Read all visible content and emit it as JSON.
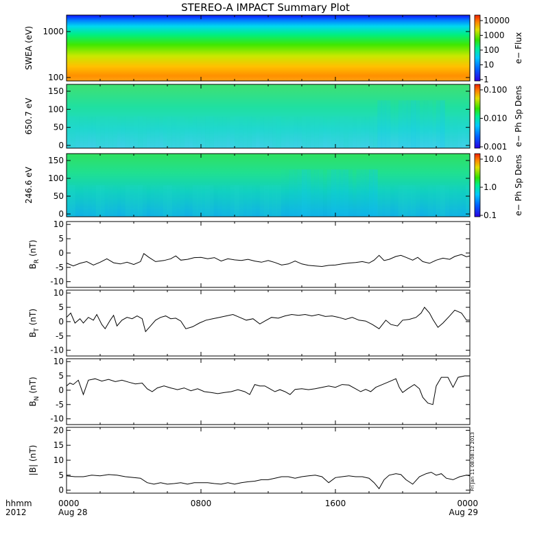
{
  "chart_data": {
    "type": "multi-panel",
    "title": "STEREO-A IMPACT Summary Plot",
    "stamp": "Fri Jan 11 08:08:12 2013",
    "x_axis": {
      "corner_label_1": "hhmm",
      "corner_label_2": "2012",
      "range_hours": [
        0,
        24
      ],
      "ticks": [
        {
          "hour": 0,
          "label": "0000",
          "date": "Aug 28"
        },
        {
          "hour": 8,
          "label": "0800",
          "date": ""
        },
        {
          "hour": 16,
          "label": "1600",
          "date": ""
        },
        {
          "hour": 24,
          "label": "0000",
          "date": "Aug 29"
        }
      ]
    },
    "spectrograms": [
      {
        "id": "swea",
        "ylabel": "SWEA (eV)",
        "y_ticks": [
          "1000",
          "100"
        ],
        "colorbar_label": "e− Flux",
        "colorbar_ticks": [
          "10000",
          "1000",
          "100",
          "10",
          "1"
        ],
        "colorbar_scale": "log"
      },
      {
        "id": "pad650",
        "ylabel": "650.7 eV",
        "y_ticks": [
          "150",
          "100",
          "50",
          "0"
        ],
        "colorbar_label": "e− Ph Sp Dens",
        "colorbar_ticks": [
          "0.100",
          "0.010",
          "0.001"
        ],
        "colorbar_scale": "log"
      },
      {
        "id": "pad246",
        "ylabel": "246.6 eV",
        "y_ticks": [
          "150",
          "100",
          "50",
          "0"
        ],
        "colorbar_label": "e− Ph Sp Dens",
        "colorbar_ticks": [
          "10.0",
          "1.0",
          "0.1"
        ],
        "colorbar_scale": "log"
      }
    ],
    "line_panels": [
      {
        "id": "br",
        "ylabel_main": "B",
        "ylabel_sub": "R",
        "ylabel_unit": "(nT)",
        "ylim": [
          -12,
          11
        ],
        "y_ticks": [
          10,
          5,
          0,
          -5,
          -10
        ],
        "series": [
          [
            0,
            -3.5
          ],
          [
            0.4,
            -4.5
          ],
          [
            0.8,
            -3.6
          ],
          [
            1.2,
            -3
          ],
          [
            1.6,
            -4.2
          ],
          [
            2.0,
            -3.2
          ],
          [
            2.4,
            -2.0
          ],
          [
            2.8,
            -3.4
          ],
          [
            3.2,
            -3.8
          ],
          [
            3.6,
            -3.2
          ],
          [
            4.0,
            -4.0
          ],
          [
            4.4,
            -3.0
          ],
          [
            4.6,
            -0.2
          ],
          [
            4.9,
            -1.5
          ],
          [
            5.3,
            -3.0
          ],
          [
            5.8,
            -2.6
          ],
          [
            6.2,
            -2.0
          ],
          [
            6.5,
            -1.0
          ],
          [
            6.8,
            -2.5
          ],
          [
            7.2,
            -2.2
          ],
          [
            7.6,
            -1.6
          ],
          [
            8.0,
            -1.5
          ],
          [
            8.4,
            -2.0
          ],
          [
            8.8,
            -1.6
          ],
          [
            9.2,
            -2.8
          ],
          [
            9.6,
            -2.0
          ],
          [
            10.0,
            -2.4
          ],
          [
            10.4,
            -2.6
          ],
          [
            10.8,
            -2.2
          ],
          [
            11.2,
            -2.8
          ],
          [
            11.6,
            -3.2
          ],
          [
            12.0,
            -2.6
          ],
          [
            12.4,
            -3.3
          ],
          [
            12.8,
            -4.2
          ],
          [
            13.2,
            -3.8
          ],
          [
            13.6,
            -2.8
          ],
          [
            14.0,
            -3.8
          ],
          [
            14.4,
            -4.3
          ],
          [
            14.8,
            -4.5
          ],
          [
            15.2,
            -4.7
          ],
          [
            15.6,
            -4.3
          ],
          [
            16.0,
            -4.2
          ],
          [
            16.4,
            -3.8
          ],
          [
            16.8,
            -3.5
          ],
          [
            17.2,
            -3.3
          ],
          [
            17.6,
            -3.0
          ],
          [
            18.0,
            -3.5
          ],
          [
            18.3,
            -2.5
          ],
          [
            18.6,
            -0.8
          ],
          [
            18.9,
            -2.6
          ],
          [
            19.2,
            -2.2
          ],
          [
            19.6,
            -1.2
          ],
          [
            19.9,
            -0.8
          ],
          [
            20.2,
            -1.5
          ],
          [
            20.6,
            -2.5
          ],
          [
            20.9,
            -1.5
          ],
          [
            21.2,
            -3.0
          ],
          [
            21.6,
            -3.6
          ],
          [
            22.0,
            -2.5
          ],
          [
            22.4,
            -1.8
          ],
          [
            22.8,
            -2.2
          ],
          [
            23.1,
            -1.2
          ],
          [
            23.5,
            -0.5
          ],
          [
            23.8,
            -1.3
          ],
          [
            24,
            -1.0
          ]
        ]
      },
      {
        "id": "bt",
        "ylabel_main": "B",
        "ylabel_sub": "T",
        "ylabel_unit": "(nT)",
        "ylim": [
          -12,
          11
        ],
        "y_ticks": [
          10,
          5,
          0,
          -5,
          -10
        ],
        "series": [
          [
            0,
            1.5
          ],
          [
            0.25,
            3.0
          ],
          [
            0.5,
            -0.5
          ],
          [
            0.8,
            1.0
          ],
          [
            1.0,
            -0.5
          ],
          [
            1.3,
            1.5
          ],
          [
            1.6,
            0.5
          ],
          [
            1.8,
            2.5
          ],
          [
            2.1,
            -1.0
          ],
          [
            2.3,
            -2.5
          ],
          [
            2.6,
            0.5
          ],
          [
            2.8,
            2.2
          ],
          [
            3.0,
            -1.5
          ],
          [
            3.3,
            0.5
          ],
          [
            3.6,
            1.5
          ],
          [
            3.9,
            1.0
          ],
          [
            4.2,
            2.0
          ],
          [
            4.5,
            1.0
          ],
          [
            4.7,
            -3.5
          ],
          [
            5.0,
            -1.5
          ],
          [
            5.3,
            0.5
          ],
          [
            5.6,
            1.5
          ],
          [
            5.9,
            2.0
          ],
          [
            6.2,
            1.0
          ],
          [
            6.5,
            1.2
          ],
          [
            6.8,
            0.2
          ],
          [
            7.1,
            -2.5
          ],
          [
            7.5,
            -1.8
          ],
          [
            7.9,
            -0.5
          ],
          [
            8.3,
            0.5
          ],
          [
            8.7,
            1.0
          ],
          [
            9.1,
            1.5
          ],
          [
            9.5,
            2.0
          ],
          [
            9.9,
            2.5
          ],
          [
            10.3,
            1.5
          ],
          [
            10.7,
            0.5
          ],
          [
            11.1,
            1.0
          ],
          [
            11.5,
            -0.8
          ],
          [
            11.8,
            0.2
          ],
          [
            12.2,
            1.5
          ],
          [
            12.6,
            1.2
          ],
          [
            13.0,
            2.0
          ],
          [
            13.4,
            2.5
          ],
          [
            13.8,
            2.2
          ],
          [
            14.2,
            2.5
          ],
          [
            14.6,
            2.0
          ],
          [
            15.0,
            2.5
          ],
          [
            15.4,
            1.8
          ],
          [
            15.8,
            2.0
          ],
          [
            16.2,
            1.5
          ],
          [
            16.6,
            0.8
          ],
          [
            17.0,
            1.5
          ],
          [
            17.4,
            0.5
          ],
          [
            17.8,
            0.2
          ],
          [
            18.2,
            -1.0
          ],
          [
            18.6,
            -2.5
          ],
          [
            19.0,
            0.5
          ],
          [
            19.3,
            -1.0
          ],
          [
            19.7,
            -1.5
          ],
          [
            20.0,
            0.5
          ],
          [
            20.4,
            0.8
          ],
          [
            20.8,
            1.5
          ],
          [
            21.1,
            3.0
          ],
          [
            21.3,
            5.0
          ],
          [
            21.6,
            3.0
          ],
          [
            21.8,
            0.8
          ],
          [
            22.1,
            -2.0
          ],
          [
            22.4,
            -0.5
          ],
          [
            22.8,
            2.0
          ],
          [
            23.1,
            4.0
          ],
          [
            23.5,
            3.0
          ],
          [
            23.8,
            0.5
          ],
          [
            24,
            0.5
          ]
        ]
      },
      {
        "id": "bn",
        "ylabel_main": "B",
        "ylabel_sub": "N",
        "ylabel_unit": "(nT)",
        "ylim": [
          -12,
          11
        ],
        "y_ticks": [
          10,
          5,
          0,
          -5,
          -10
        ],
        "series": [
          [
            0,
            1.5
          ],
          [
            0.2,
            2.5
          ],
          [
            0.4,
            2.0
          ],
          [
            0.7,
            3.5
          ],
          [
            1.0,
            -1.5
          ],
          [
            1.3,
            3.5
          ],
          [
            1.7,
            4.0
          ],
          [
            2.1,
            3.2
          ],
          [
            2.5,
            3.8
          ],
          [
            2.9,
            3.0
          ],
          [
            3.3,
            3.5
          ],
          [
            3.7,
            2.8
          ],
          [
            4.1,
            2.2
          ],
          [
            4.5,
            2.5
          ],
          [
            4.8,
            0.5
          ],
          [
            5.1,
            -0.5
          ],
          [
            5.4,
            0.8
          ],
          [
            5.8,
            1.5
          ],
          [
            6.2,
            0.8
          ],
          [
            6.6,
            0.2
          ],
          [
            7.0,
            0.8
          ],
          [
            7.4,
            -0.2
          ],
          [
            7.8,
            0.5
          ],
          [
            8.2,
            -0.5
          ],
          [
            8.6,
            -0.8
          ],
          [
            9.0,
            -1.2
          ],
          [
            9.4,
            -0.8
          ],
          [
            9.8,
            -0.5
          ],
          [
            10.2,
            0.2
          ],
          [
            10.6,
            -0.5
          ],
          [
            10.9,
            -1.5
          ],
          [
            11.2,
            2.0
          ],
          [
            11.5,
            1.5
          ],
          [
            11.8,
            1.5
          ],
          [
            12.1,
            0.5
          ],
          [
            12.4,
            -0.5
          ],
          [
            12.7,
            0.2
          ],
          [
            13.0,
            -0.5
          ],
          [
            13.3,
            -1.5
          ],
          [
            13.6,
            0.3
          ],
          [
            14.0,
            0.5
          ],
          [
            14.4,
            0.2
          ],
          [
            14.8,
            0.5
          ],
          [
            15.2,
            1.0
          ],
          [
            15.6,
            1.5
          ],
          [
            16.0,
            1.0
          ],
          [
            16.4,
            2.0
          ],
          [
            16.8,
            1.8
          ],
          [
            17.2,
            0.5
          ],
          [
            17.5,
            -0.5
          ],
          [
            17.8,
            0.3
          ],
          [
            18.1,
            -0.5
          ],
          [
            18.4,
            1.0
          ],
          [
            18.8,
            2.0
          ],
          [
            19.2,
            3.0
          ],
          [
            19.6,
            4.0
          ],
          [
            19.8,
            1.0
          ],
          [
            20.0,
            -0.8
          ],
          [
            20.3,
            0.5
          ],
          [
            20.7,
            2.0
          ],
          [
            21.0,
            0.5
          ],
          [
            21.2,
            -2.5
          ],
          [
            21.5,
            -4.5
          ],
          [
            21.8,
            -5.0
          ],
          [
            22.0,
            1.5
          ],
          [
            22.3,
            4.5
          ],
          [
            22.7,
            4.5
          ],
          [
            23.0,
            1.0
          ],
          [
            23.3,
            4.5
          ],
          [
            23.7,
            5.0
          ],
          [
            24,
            5.0
          ]
        ]
      },
      {
        "id": "bmag",
        "ylabel_main": "|B|",
        "ylabel_sub": "",
        "ylabel_unit": "(nT)",
        "ylim": [
          -1,
          21
        ],
        "y_ticks": [
          20,
          15,
          10,
          5,
          0
        ],
        "series": [
          [
            0,
            4.8
          ],
          [
            0.5,
            4.5
          ],
          [
            1.0,
            4.5
          ],
          [
            1.5,
            5.0
          ],
          [
            2.0,
            4.8
          ],
          [
            2.5,
            5.2
          ],
          [
            3.0,
            5.0
          ],
          [
            3.5,
            4.5
          ],
          [
            4.0,
            4.2
          ],
          [
            4.4,
            4.0
          ],
          [
            4.8,
            2.5
          ],
          [
            5.2,
            2.0
          ],
          [
            5.6,
            2.5
          ],
          [
            6.0,
            2.0
          ],
          [
            6.4,
            2.2
          ],
          [
            6.8,
            2.5
          ],
          [
            7.2,
            2.0
          ],
          [
            7.6,
            2.5
          ],
          [
            8.0,
            2.5
          ],
          [
            8.4,
            2.5
          ],
          [
            8.8,
            2.2
          ],
          [
            9.2,
            2.0
          ],
          [
            9.6,
            2.5
          ],
          [
            10.0,
            2.0
          ],
          [
            10.4,
            2.5
          ],
          [
            10.8,
            2.8
          ],
          [
            11.2,
            3.0
          ],
          [
            11.6,
            3.5
          ],
          [
            12.0,
            3.5
          ],
          [
            12.4,
            4.0
          ],
          [
            12.8,
            4.5
          ],
          [
            13.2,
            4.5
          ],
          [
            13.6,
            4.0
          ],
          [
            14.0,
            4.5
          ],
          [
            14.4,
            4.8
          ],
          [
            14.8,
            5.0
          ],
          [
            15.2,
            4.5
          ],
          [
            15.6,
            2.5
          ],
          [
            16.0,
            4.2
          ],
          [
            16.4,
            4.5
          ],
          [
            16.8,
            4.8
          ],
          [
            17.2,
            4.5
          ],
          [
            17.6,
            4.5
          ],
          [
            18.0,
            4.0
          ],
          [
            18.3,
            2.5
          ],
          [
            18.6,
            0.5
          ],
          [
            18.9,
            3.5
          ],
          [
            19.2,
            5.0
          ],
          [
            19.6,
            5.5
          ],
          [
            19.9,
            5.2
          ],
          [
            20.2,
            3.5
          ],
          [
            20.6,
            2.0
          ],
          [
            21.0,
            4.5
          ],
          [
            21.4,
            5.5
          ],
          [
            21.7,
            6.0
          ],
          [
            22.0,
            5.0
          ],
          [
            22.3,
            5.5
          ],
          [
            22.6,
            4.0
          ],
          [
            23.0,
            3.5
          ],
          [
            23.4,
            4.5
          ],
          [
            23.8,
            5.0
          ],
          [
            24,
            4.8
          ]
        ]
      }
    ]
  }
}
